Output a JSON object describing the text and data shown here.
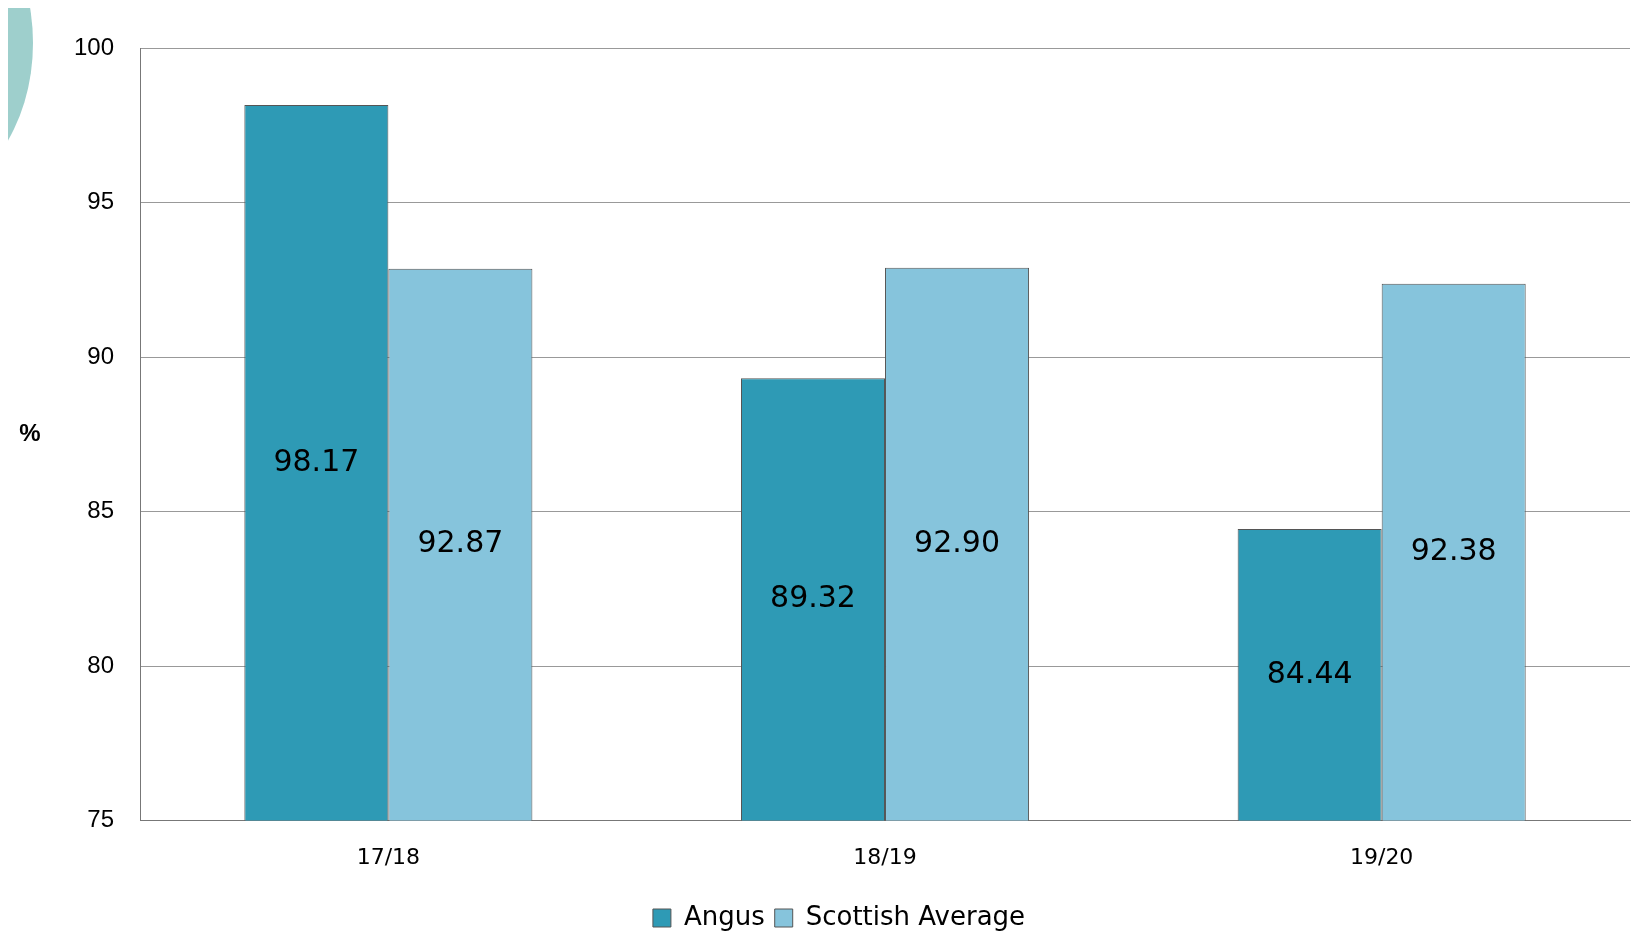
{
  "chart_data": {
    "type": "bar",
    "ylabel": "%",
    "categories": [
      "17/18",
      "18/19",
      "19/20"
    ],
    "series": [
      {
        "name": "Angus",
        "color": "#2e9ab5",
        "values": [
          98.17,
          89.32,
          84.44
        ],
        "value_labels": [
          "98.17",
          "89.32",
          "84.44"
        ]
      },
      {
        "name": "Scottish Average",
        "color": "#86c4dc",
        "values": [
          92.87,
          92.9,
          92.38
        ],
        "value_labels": [
          "92.87",
          "92.90",
          "92.38"
        ]
      }
    ],
    "ylim": [
      75,
      100
    ],
    "yticks": [
      75,
      80,
      85,
      90,
      95,
      100
    ],
    "grid": "y",
    "legend": "bottom"
  }
}
